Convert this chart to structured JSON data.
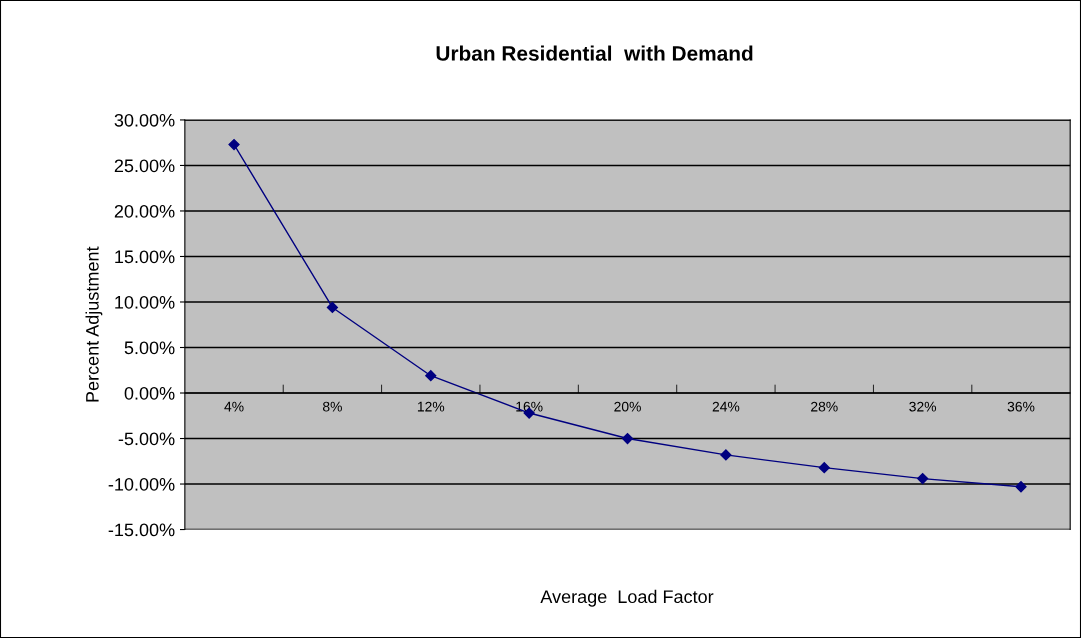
{
  "chart_data": {
    "type": "line",
    "title": "Urban Residential  with Demand",
    "xlabel": "Average  Load Factor",
    "ylabel": "Percent Adjustment",
    "categories": [
      "4%",
      "8%",
      "12%",
      "16%",
      "20%",
      "24%",
      "28%",
      "32%",
      "36%"
    ],
    "series": [
      {
        "color": "#000080",
        "values": [
          27.3,
          9.4,
          1.9,
          -2.2,
          -5.0,
          -6.8,
          -8.2,
          -9.4,
          -10.3
        ]
      }
    ],
    "ylim": [
      -15,
      30
    ],
    "yticks": [
      {
        "value": -15,
        "label": "-15.00%"
      },
      {
        "value": -10,
        "label": "-10.00%"
      },
      {
        "value": -5,
        "label": "-5.00%"
      },
      {
        "value": 0,
        "label": "0.00%"
      },
      {
        "value": 5,
        "label": "5.00%"
      },
      {
        "value": 10,
        "label": "10.00%"
      },
      {
        "value": 15,
        "label": "15.00%"
      },
      {
        "value": 20,
        "label": "20.00%"
      },
      {
        "value": 25,
        "label": "25.00%"
      },
      {
        "value": 30,
        "label": "30.00%"
      }
    ],
    "grid": "y",
    "marker": "diamond",
    "line_style": "solid",
    "legend": false
  }
}
